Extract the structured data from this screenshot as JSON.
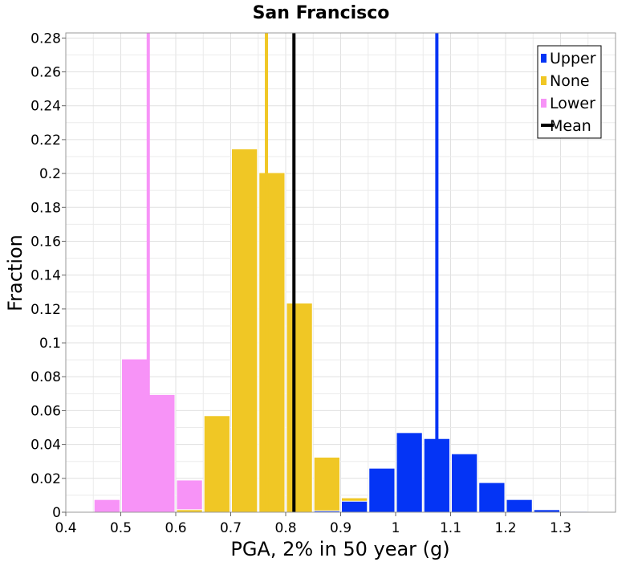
{
  "chart_data": {
    "type": "bar",
    "title": "San Francisco",
    "xlabel": "PGA, 2% in 50 year (g)",
    "ylabel": "Fraction",
    "xlim": [
      0.4,
      1.4
    ],
    "ylim": [
      0,
      0.283
    ],
    "bin_width": 0.05,
    "x_ticks": [
      {
        "value": 0.4,
        "label": "0.4"
      },
      {
        "value": 0.5,
        "label": "0.5"
      },
      {
        "value": 0.6,
        "label": "0.6"
      },
      {
        "value": 0.7,
        "label": "0.7"
      },
      {
        "value": 0.8,
        "label": "0.8"
      },
      {
        "value": 0.9,
        "label": "0.9"
      },
      {
        "value": 1.0,
        "label": "1"
      },
      {
        "value": 1.1,
        "label": "1.1"
      },
      {
        "value": 1.2,
        "label": "1.2"
      },
      {
        "value": 1.3,
        "label": "1.3"
      }
    ],
    "y_ticks": [
      {
        "value": 0,
        "label": "0"
      },
      {
        "value": 0.02,
        "label": "0.02"
      },
      {
        "value": 0.04,
        "label": "0.04"
      },
      {
        "value": 0.06,
        "label": "0.06"
      },
      {
        "value": 0.08,
        "label": "0.08"
      },
      {
        "value": 0.1,
        "label": "0.1"
      },
      {
        "value": 0.12,
        "label": "0.12"
      },
      {
        "value": 0.14,
        "label": "0.14"
      },
      {
        "value": 0.16,
        "label": "0.16"
      },
      {
        "value": 0.18,
        "label": "0.18"
      },
      {
        "value": 0.2,
        "label": "0.2"
      },
      {
        "value": 0.22,
        "label": "0.22"
      },
      {
        "value": 0.24,
        "label": "0.24"
      },
      {
        "value": 0.26,
        "label": "0.26"
      },
      {
        "value": 0.28,
        "label": "0.28"
      }
    ],
    "series": [
      {
        "name": "Lower",
        "color": "#f793f7",
        "bins": [
          {
            "x": 0.475,
            "value": 0.0075
          },
          {
            "x": 0.525,
            "value": 0.0905
          },
          {
            "x": 0.575,
            "value": 0.0695
          },
          {
            "x": 0.625,
            "value": 0.019
          }
        ],
        "mean": 0.55
      },
      {
        "name": "None",
        "color": "#f0c725",
        "bins": [
          {
            "x": 0.625,
            "value": 0.0015
          },
          {
            "x": 0.675,
            "value": 0.057
          },
          {
            "x": 0.725,
            "value": 0.2145
          },
          {
            "x": 0.775,
            "value": 0.2005
          },
          {
            "x": 0.825,
            "value": 0.1235
          },
          {
            "x": 0.875,
            "value": 0.0325
          },
          {
            "x": 0.925,
            "value": 0.0085
          }
        ],
        "mean": 0.765
      },
      {
        "name": "Upper",
        "color": "#0434f5",
        "bins": [
          {
            "x": 0.875,
            "value": 0.0008
          },
          {
            "x": 0.925,
            "value": 0.0065
          },
          {
            "x": 0.975,
            "value": 0.026
          },
          {
            "x": 1.025,
            "value": 0.047
          },
          {
            "x": 1.075,
            "value": 0.0435
          },
          {
            "x": 1.125,
            "value": 0.0345
          },
          {
            "x": 1.175,
            "value": 0.0175
          },
          {
            "x": 1.225,
            "value": 0.0075
          },
          {
            "x": 1.275,
            "value": 0.0015
          },
          {
            "x": 1.325,
            "value": 0.0005
          }
        ],
        "mean": 1.075
      }
    ],
    "overall_mean": {
      "name": "Mean",
      "value": 0.815,
      "color": "#000000"
    },
    "legend": {
      "position": "top-right",
      "entries": [
        {
          "label": "Upper",
          "color": "#0434f5",
          "kind": "bar"
        },
        {
          "label": "None",
          "color": "#f0c725",
          "kind": "bar"
        },
        {
          "label": "Lower",
          "color": "#f793f7",
          "kind": "bar"
        },
        {
          "label": "Mean",
          "color": "#000000",
          "kind": "line"
        }
      ]
    },
    "grid": true
  }
}
